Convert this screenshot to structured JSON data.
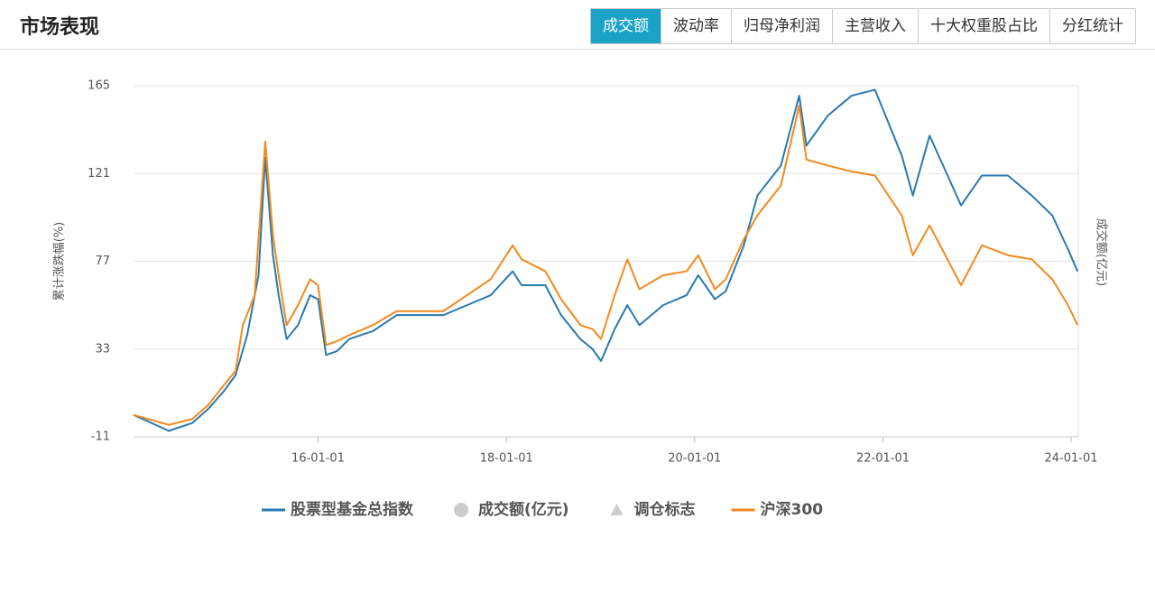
{
  "header": {
    "title": "市场表现",
    "tabs": [
      "成交额",
      "波动率",
      "归母净利润",
      "主营收入",
      "十大权重股占比",
      "分红统计"
    ],
    "active_tab": 0
  },
  "chart_data": {
    "type": "line",
    "y_label": "累计涨跌幅(%)",
    "y2_label": "成交额(亿元)",
    "xlim": [
      "14-01-15",
      "24-01-29"
    ],
    "xticks": [
      "16-01-01",
      "18-01-01",
      "20-01-01",
      "22-01-01",
      "24-01-01"
    ],
    "ylim": [
      -11,
      165
    ],
    "yticks": [
      -11,
      33,
      77,
      121,
      165
    ],
    "grid": true,
    "series": [
      {
        "name": "股票型基金总指数",
        "color": "#2a7ab0",
        "x": [
          "14-01-15",
          "14-06-01",
          "14-09-01",
          "14-11-01",
          "15-01-01",
          "15-02-15",
          "15-04-01",
          "15-05-15",
          "15-06-10",
          "15-07-10",
          "15-08-01",
          "15-09-01",
          "15-10-15",
          "15-12-01",
          "16-01-01",
          "16-02-01",
          "16-03-15",
          "16-05-01",
          "16-08-01",
          "16-11-01",
          "17-02-01",
          "17-05-01",
          "17-08-01",
          "17-11-01",
          "18-01-25",
          "18-03-01",
          "18-06-01",
          "18-08-01",
          "18-10-15",
          "18-12-01",
          "19-01-03",
          "19-02-25",
          "19-04-15",
          "19-06-01",
          "19-09-01",
          "19-12-01",
          "20-01-15",
          "20-03-20",
          "20-05-01",
          "20-07-10",
          "20-09-01",
          "20-12-01",
          "21-02-10",
          "21-03-10",
          "21-06-01",
          "21-09-01",
          "21-12-01",
          "22-03-15",
          "22-04-27",
          "22-07-01",
          "22-10-31",
          "23-01-20",
          "23-05-01",
          "23-08-01",
          "23-10-20",
          "23-12-20",
          "24-01-26"
        ],
        "values": [
          0,
          -8,
          -4,
          3,
          12,
          20,
          40,
          70,
          129,
          80,
          60,
          38,
          45,
          60,
          58,
          30,
          32,
          38,
          42,
          50,
          50,
          50,
          55,
          60,
          72,
          65,
          65,
          50,
          38,
          33,
          27,
          43,
          55,
          45,
          55,
          60,
          70,
          58,
          62,
          85,
          110,
          125,
          160,
          135,
          150,
          160,
          163,
          130,
          110,
          140,
          105,
          120,
          120,
          110,
          100,
          83,
          72
        ]
      },
      {
        "name": "沪深300",
        "color": "#f28a1e",
        "x": [
          "14-01-15",
          "14-06-01",
          "14-09-01",
          "14-11-01",
          "15-01-01",
          "15-02-15",
          "15-03-15",
          "15-04-30",
          "15-06-10",
          "15-07-10",
          "15-08-01",
          "15-09-01",
          "15-10-15",
          "15-12-01",
          "16-01-01",
          "16-02-01",
          "16-03-15",
          "16-05-01",
          "16-08-01",
          "16-11-01",
          "17-02-01",
          "17-05-01",
          "17-08-01",
          "17-11-01",
          "18-01-25",
          "18-03-01",
          "18-06-01",
          "18-08-01",
          "18-10-15",
          "18-12-01",
          "19-01-03",
          "19-02-25",
          "19-04-15",
          "19-06-01",
          "19-09-01",
          "19-12-01",
          "20-01-15",
          "20-03-20",
          "20-05-01",
          "20-07-10",
          "20-09-01",
          "20-12-01",
          "21-02-10",
          "21-03-10",
          "21-06-01",
          "21-09-01",
          "21-12-01",
          "22-03-15",
          "22-04-27",
          "22-07-01",
          "22-10-31",
          "23-01-20",
          "23-05-01",
          "23-08-01",
          "23-10-20",
          "23-12-20",
          "24-01-26"
        ],
        "values": [
          0,
          -5,
          -2,
          5,
          15,
          22,
          45,
          60,
          137,
          90,
          70,
          45,
          55,
          68,
          65,
          35,
          37,
          40,
          45,
          52,
          52,
          52,
          60,
          68,
          85,
          78,
          72,
          58,
          45,
          43,
          38,
          60,
          78,
          63,
          70,
          72,
          80,
          63,
          68,
          88,
          100,
          115,
          155,
          128,
          125,
          122,
          120,
          100,
          80,
          95,
          65,
          85,
          80,
          78,
          68,
          55,
          45
        ]
      }
    ],
    "inactive_legend": [
      {
        "name": "成交额(亿元)",
        "marker": "circle",
        "color": "#cccccc"
      },
      {
        "name": "调仓标志",
        "marker": "triangle",
        "color": "#cccccc"
      }
    ]
  }
}
